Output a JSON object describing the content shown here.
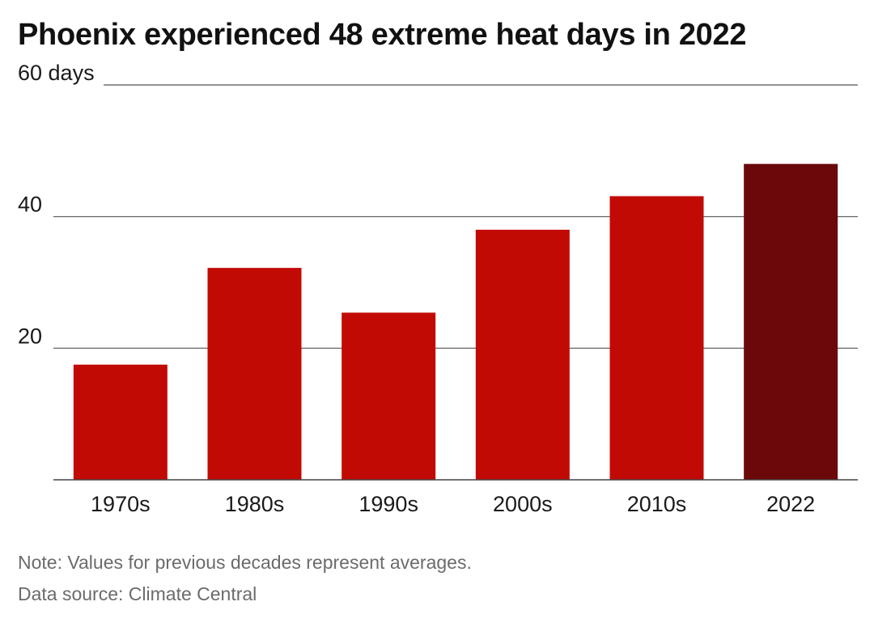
{
  "chart_data": {
    "type": "bar",
    "title": "Phoenix experienced 48 extreme heat days in 2022",
    "categories": [
      "1970s",
      "1980s",
      "1990s",
      "2000s",
      "2010s",
      "2022"
    ],
    "values": [
      17.5,
      32.2,
      25.4,
      38,
      43.1,
      48
    ],
    "ylim": [
      0,
      60
    ],
    "yticks": [
      {
        "value": 20,
        "label": "20"
      },
      {
        "value": 40,
        "label": "40"
      },
      {
        "value": 60,
        "label": "60 days"
      }
    ],
    "grid": true,
    "legend": "none",
    "colors": {
      "bar": "#c20a04",
      "highlight": "#6b0809",
      "gridline": "#555555"
    },
    "highlight_category": "2022"
  },
  "footer": {
    "note": "Note: Values for previous decades represent averages.",
    "source": "Data source: Climate Central"
  }
}
